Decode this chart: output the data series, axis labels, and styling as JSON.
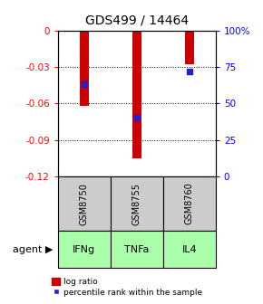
{
  "title": "GDS499 / 14464",
  "samples": [
    "GSM8750",
    "GSM8755",
    "GSM8760"
  ],
  "agents": [
    "IFNg",
    "TNFa",
    "IL4"
  ],
  "log_ratios": [
    -0.062,
    -0.105,
    -0.028
  ],
  "percentiles": [
    63,
    40,
    72
  ],
  "left_yticks": [
    0,
    -0.03,
    -0.06,
    -0.09,
    -0.12
  ],
  "right_yticks": [
    0,
    25,
    50,
    75,
    100
  ],
  "bar_color": "#cc0000",
  "dot_color": "#2222cc",
  "agent_bg_color": "#aaffaa",
  "sample_bg_color": "#cccccc",
  "legend_bar_label": "log ratio",
  "legend_dot_label": "percentile rank within the sample",
  "agent_label": "agent",
  "bar_width": 0.18
}
